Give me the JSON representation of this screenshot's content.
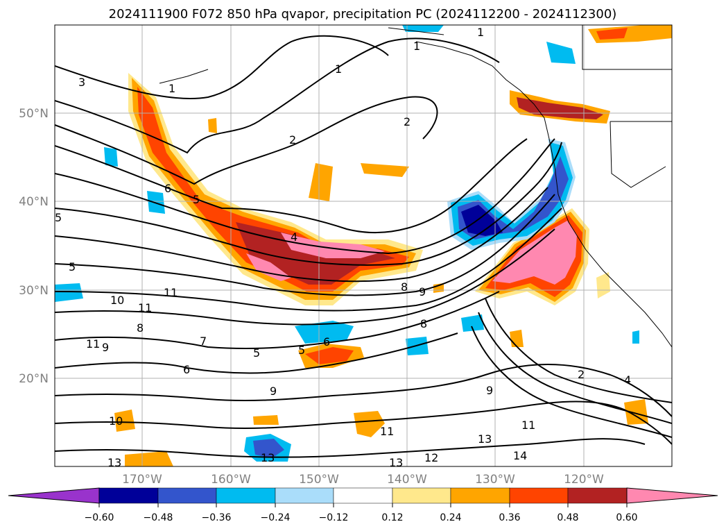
{
  "title": "2024111900 F072 850 hPa qvapor, precipitation PC (2024112200 - 2024112300)",
  "map": {
    "lat_labels": [
      "50°N",
      "40°N",
      "30°N",
      "20°N"
    ],
    "lon_labels": [
      "170°W",
      "160°W",
      "150°W",
      "140°W",
      "130°W",
      "120°W"
    ]
  },
  "colorbar": {
    "colors": [
      "#9933cc",
      "#000099",
      "#3355cc",
      "#00bbf0",
      "#aaddfa",
      "#ffffff",
      "#ffe88c",
      "#ffa500",
      "#ff4400",
      "#b22222",
      "#ff88b0"
    ],
    "tick_labels": [
      "−0.60",
      "−0.48",
      "−0.36",
      "−0.24",
      "−0.12",
      "0.12",
      "0.24",
      "0.36",
      "0.48",
      "0.60"
    ]
  },
  "contour_labels": [
    "1",
    "1",
    "1",
    "1",
    "2",
    "2",
    "2",
    "3",
    "4",
    "4",
    "5",
    "5",
    "5",
    "5",
    "5",
    "6",
    "6",
    "6",
    "7",
    "8",
    "8",
    "8",
    "9",
    "9",
    "9",
    "9",
    "10",
    "10",
    "11",
    "11",
    "11",
    "11",
    "11",
    "12",
    "13",
    "13",
    "13",
    "13",
    "14"
  ]
}
